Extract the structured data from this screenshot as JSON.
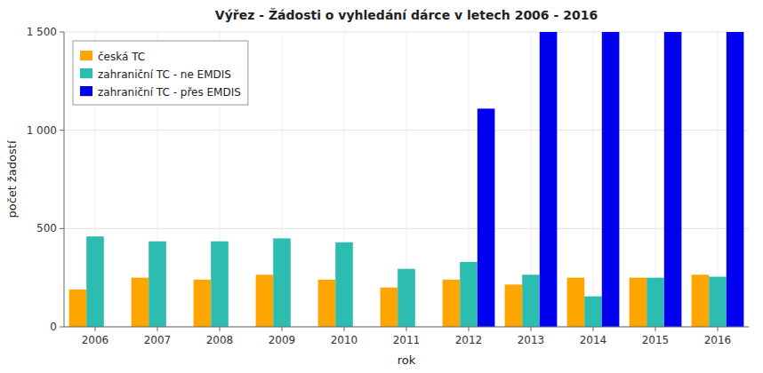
{
  "chart_data": {
    "type": "bar",
    "title": "Výřez - Žádosti o vyhledání dárce v letech 2006 - 2016",
    "x_label": "rok",
    "y_label": "počet žadostí",
    "categories": [
      "2006",
      "2007",
      "2008",
      "2009",
      "2010",
      "2011",
      "2012",
      "2013",
      "2014",
      "2015",
      "2016"
    ],
    "series": [
      {
        "name": "česká TC",
        "color": "#FFA500",
        "values": [
          190,
          250,
          240,
          265,
          240,
          200,
          240,
          215,
          250,
          250,
          265
        ]
      },
      {
        "name": "zahraniční TC - ne EMDIS",
        "color": "#2DBDB0",
        "values": [
          460,
          435,
          435,
          450,
          430,
          295,
          330,
          265,
          155,
          250,
          255
        ]
      },
      {
        "name": "zahraniční TC - přes EMDIS",
        "color": "#0000EE",
        "values": [
          0,
          0,
          0,
          0,
          0,
          0,
          1110,
          1500,
          1500,
          1500,
          1500
        ]
      }
    ],
    "ylim": [
      0,
      1500
    ],
    "yticks": [
      0,
      500,
      {
        "value": 1000,
        "label": "1 000"
      },
      {
        "value": 1500,
        "label": "1 500"
      }
    ],
    "grid": true,
    "legend": "upper-left"
  }
}
